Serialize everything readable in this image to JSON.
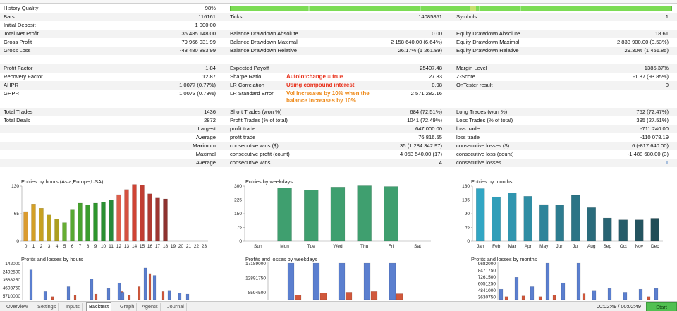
{
  "stats": {
    "history_quality": {
      "label": "History Quality",
      "value": "98%"
    },
    "bars": {
      "label": "Bars",
      "value": "116161"
    },
    "ticks": {
      "label": "Ticks",
      "value": "14085851"
    },
    "symbols": {
      "label": "Symbols",
      "value": "1"
    },
    "initial_deposit": {
      "label": "Initial Deposit",
      "value": "1 000.00"
    },
    "total_net_profit": {
      "label": "Total Net Profit",
      "value": "36 485 148.00"
    },
    "balance_dd_absolute": {
      "label": "Balance Drawdown Absolute",
      "value": "0.00"
    },
    "equity_dd_absolute": {
      "label": "Equity Drawdown Absolute",
      "value": "18.61"
    },
    "gross_profit": {
      "label": "Gross Profit",
      "value": "79 966 031.99"
    },
    "balance_dd_maximal": {
      "label": "Balance Drawdown Maximal",
      "value": "2 158 640.00 (6.64%)"
    },
    "equity_dd_maximal": {
      "label": "Equity Drawdown Maximal",
      "value": "2 833 900.00 (0.53%)"
    },
    "gross_loss": {
      "label": "Gross Loss",
      "value": "-43 480 883.99"
    },
    "balance_dd_relative": {
      "label": "Balance Drawdown Relative",
      "value": "26.17% (1 261.89)"
    },
    "equity_dd_relative": {
      "label": "Equity Drawdown Relative",
      "value": "29.30% (1 451.85)"
    },
    "profit_factor": {
      "label": "Profit Factor",
      "value": "1.84"
    },
    "expected_payoff": {
      "label": "Expected Payoff",
      "value": "25407.48"
    },
    "margin_level": {
      "label": "Margin Level",
      "value": "1385.37%"
    },
    "recovery_factor": {
      "label": "Recovery Factor",
      "value": "12.87"
    },
    "sharpe_ratio": {
      "label": "Sharpe Ratio",
      "value": "27.33"
    },
    "z_score": {
      "label": "Z-Score",
      "value": "-1.87 (93.85%)"
    },
    "ahpr": {
      "label": "AHPR",
      "value": "1.0077 (0.77%)"
    },
    "lr_correlation": {
      "label": "LR Correlation",
      "value": "0.98"
    },
    "ontester_result": {
      "label": "OnTester result",
      "value": "0"
    },
    "ghpr": {
      "label": "GHPR",
      "value": "1.0073 (0.73%)"
    },
    "lr_standard_error": {
      "label": "LR Standard Error",
      "value": "2 571 282.16"
    },
    "total_trades": {
      "label": "Total Trades",
      "value": "1436"
    },
    "short_trades": {
      "label": "Short Trades (won %)",
      "value": "684 (72.51%)"
    },
    "long_trades": {
      "label": "Long Trades (won %)",
      "value": "752 (72.47%)"
    },
    "total_deals": {
      "label": "Total Deals",
      "value": "2872"
    },
    "profit_trades": {
      "label": "Profit Trades (% of total)",
      "value": "1041 (72.49%)"
    },
    "loss_trades": {
      "label": "Loss Trades (% of total)",
      "value": "395 (27.51%)"
    },
    "largest": {
      "label": "Largest",
      "profit_label": "profit trade",
      "profit_value": "647 000.00",
      "loss_label": "loss trade",
      "loss_value": "-711 240.00"
    },
    "average": {
      "label": "Average",
      "profit_label": "profit trade",
      "profit_value": "76 816.55",
      "loss_label": "loss trade",
      "loss_value": "-110 078.19"
    },
    "maximum": {
      "label": "Maximum",
      "wins_label": "consecutive wins ($)",
      "wins_value": "35 (1 284 342.97)",
      "losses_label": "consecutive losses ($)",
      "losses_value": "6 (-817 640.00)"
    },
    "maximal": {
      "label": "Maximal",
      "profit_label": "consecutive profit (count)",
      "profit_value": "4 053 540.00 (17)",
      "loss_label": "consecutive loss (count)",
      "loss_value": "-1 488 680.00 (3)"
    },
    "average_consecutive": {
      "label": "Average",
      "wins_label": "consecutive wins",
      "wins_value": "4",
      "losses_label": "consecutive losses",
      "losses_value": "1"
    }
  },
  "annotations": {
    "line1": "Autolotchange = true",
    "line2": "Using compound interest",
    "line3": "Vol increases by 10% when the",
    "line4": "balance increases by 10%"
  },
  "colors": {
    "quality_bar": "#7cdc54",
    "annotation_red": "#e8301a",
    "annotation_orange": "#ee8a1a",
    "start_button": "#52c052"
  },
  "chart_data": [
    {
      "type": "bar",
      "title": "Entries by hours (Asia,Europe,USA)",
      "categories": [
        "0",
        "1",
        "2",
        "3",
        "4",
        "5",
        "6",
        "7",
        "8",
        "9",
        "10",
        "11",
        "12",
        "13",
        "14",
        "15",
        "16",
        "17",
        "18",
        "19",
        "20",
        "21",
        "22",
        "23"
      ],
      "values": [
        70,
        88,
        78,
        62,
        52,
        44,
        74,
        90,
        86,
        90,
        92,
        98,
        110,
        122,
        134,
        132,
        112,
        102,
        100,
        0,
        0,
        0,
        0,
        0
      ],
      "ylim": [
        0,
        130
      ],
      "yticks": [
        0,
        65,
        130
      ]
    },
    {
      "type": "bar",
      "title": "Entries by weekdays",
      "categories": [
        "Sun",
        "Mon",
        "Tue",
        "Wed",
        "Thu",
        "Fri",
        "Sat"
      ],
      "values": [
        0,
        290,
        280,
        295,
        302,
        298,
        0
      ],
      "ylim": [
        0,
        300
      ],
      "yticks": [
        0,
        75,
        150,
        225,
        300
      ]
    },
    {
      "type": "bar",
      "title": "Entries by months",
      "categories": [
        "Jan",
        "Feb",
        "Mar",
        "Apr",
        "May",
        "Jun",
        "Jul",
        "Aug",
        "Sep",
        "Oct",
        "Nov",
        "Dec"
      ],
      "values": [
        172,
        145,
        158,
        147,
        120,
        118,
        150,
        110,
        76,
        70,
        70,
        75
      ],
      "ylim": [
        0,
        180
      ],
      "yticks": [
        0,
        45,
        90,
        135,
        180
      ]
    },
    {
      "type": "bar",
      "title": "Profits and losses by hours",
      "ytick_labels": [
        "142000",
        "2492500",
        "3568250",
        "4603750",
        "5710000"
      ]
    },
    {
      "type": "bar",
      "title": "Profits and losses by weekdays",
      "ytick_labels": [
        "17189000",
        "12891750",
        "8594500"
      ]
    },
    {
      "type": "bar",
      "title": "Profits and losses by months",
      "ytick_labels": [
        "9682000",
        "8471750",
        "7261500",
        "6051250",
        "4841000",
        "3630750"
      ]
    }
  ],
  "tabs": [
    "Overview",
    "Settings",
    "Inputs",
    "Backtest",
    "Graph",
    "Agents",
    "Journal"
  ],
  "active_tab": "Backtest",
  "footer": {
    "timer": "00:02:49 / 00:02:49",
    "start_label": "Start"
  }
}
